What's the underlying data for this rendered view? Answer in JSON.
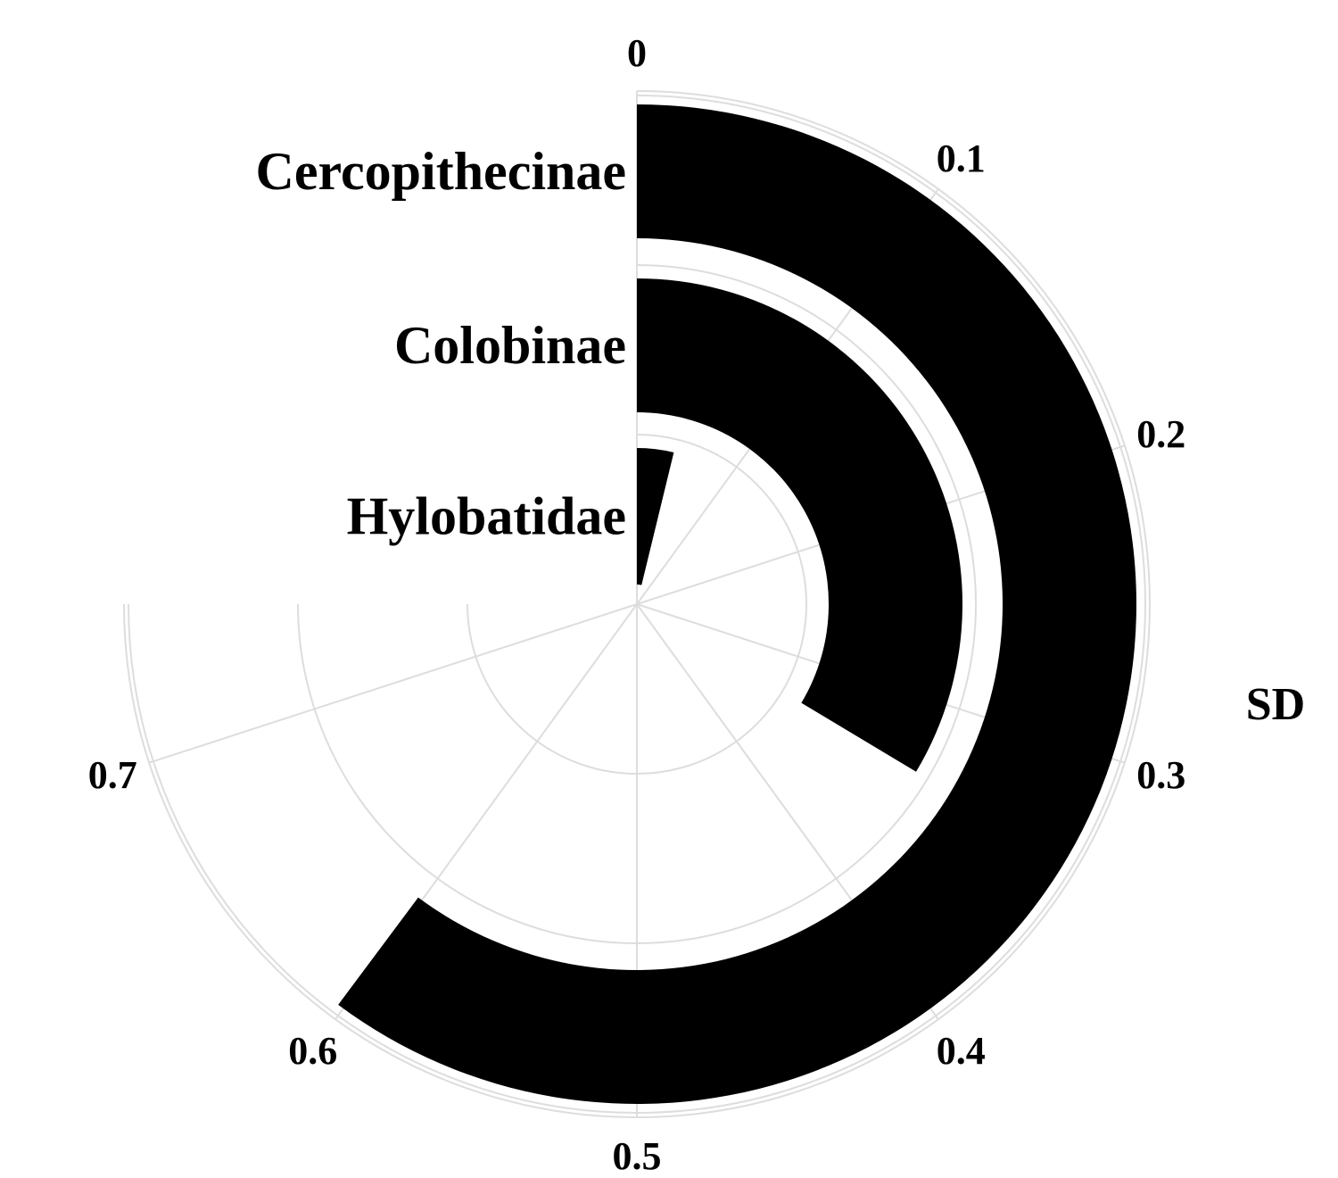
{
  "chart_data": {
    "type": "radial-bar",
    "value_axis": {
      "label": "SD",
      "range": [
        0,
        0.75
      ],
      "ticks": [
        0,
        0.1,
        0.2,
        0.3,
        0.4,
        0.5,
        0.6,
        0.7
      ],
      "tick_labels": [
        "0",
        "0.1",
        "0.2",
        "0.3",
        "0.4",
        "0.5",
        "0.6",
        "0.7"
      ],
      "direction": "clockwise from top"
    },
    "categories": [
      "Cercopithecinae",
      "Colobinae",
      "Hylobatidae"
    ],
    "values": [
      0.602,
      0.336,
      0.038
    ],
    "bar_color": "#000000",
    "grid_color": "#dddddd",
    "grid": true
  }
}
